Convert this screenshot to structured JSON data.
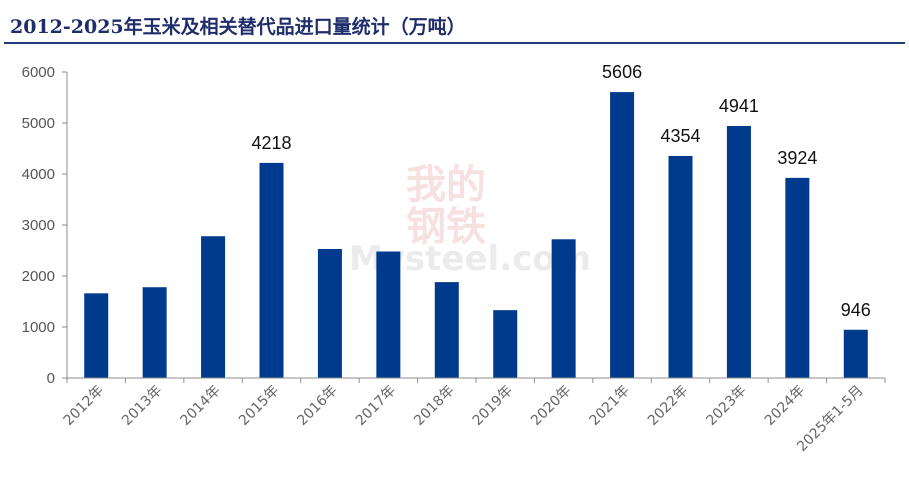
{
  "title": "2012-2025年玉米及相关替代品进口量统计（万吨）",
  "watermark": {
    "line1": "我的",
    "line2": "钢铁",
    "brand": "Mysteel.com"
  },
  "colors": {
    "bar": "#003a8c",
    "axis": "#8c8c8c",
    "title": "#1f2d6b"
  },
  "chart_data": {
    "type": "bar",
    "title": "2012-2025年玉米及相关替代品进口量统计（万吨）",
    "categories": [
      "2012年",
      "2013年",
      "2014年",
      "2015年",
      "2016年",
      "2017年",
      "2018年",
      "2019年",
      "2020年",
      "2021年",
      "2022年",
      "2023年",
      "2024年",
      "2025年1-5月"
    ],
    "values": [
      1660,
      1780,
      2780,
      4218,
      2530,
      2480,
      1880,
      1330,
      2720,
      5606,
      4354,
      4941,
      3924,
      946
    ],
    "data_labels": [
      null,
      null,
      null,
      "4218",
      null,
      null,
      null,
      null,
      null,
      "5606",
      "4354",
      "4941",
      "3924",
      "946"
    ],
    "yticks": [
      "0",
      "1000",
      "2000",
      "3000",
      "4000",
      "5000",
      "6000"
    ],
    "ylim": [
      0,
      6000
    ],
    "xlabel": "",
    "ylabel": "",
    "grid": false,
    "legend": "none"
  }
}
